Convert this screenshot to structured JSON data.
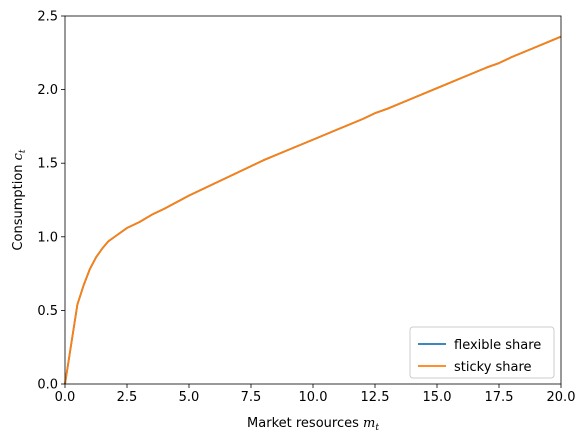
{
  "chart_data": {
    "type": "line",
    "title": "",
    "xlabel": {
      "text": "Market resources ",
      "math_base": "m",
      "math_sub": "t"
    },
    "ylabel": {
      "text": "Consumption ",
      "math_base": "c",
      "math_sub": "t"
    },
    "xlim": [
      0,
      20
    ],
    "ylim": [
      0,
      2.5
    ],
    "xticks": [
      0,
      2.5,
      5,
      7.5,
      10,
      12.5,
      15,
      17.5,
      20
    ],
    "xtick_labels": [
      "0.0",
      "2.5",
      "5.0",
      "7.5",
      "10.0",
      "12.5",
      "15.0",
      "17.5",
      "20.0"
    ],
    "yticks": [
      0,
      0.5,
      1,
      1.5,
      2,
      2.5
    ],
    "ytick_labels": [
      "0.0",
      "0.5",
      "1.0",
      "1.5",
      "2.0",
      "2.5"
    ],
    "grid": false,
    "legend_position": "lower-right",
    "series": [
      {
        "name": "flexible share",
        "color": "#1f77b4",
        "x": [
          0,
          0.25,
          0.5,
          0.75,
          1.0,
          1.25,
          1.5,
          1.75,
          2.0,
          2.5,
          3.0,
          3.5,
          4.0,
          5.0,
          6.0,
          7.0,
          7.5,
          8.0,
          9.0,
          10.0,
          11.0,
          12.0,
          12.5,
          13.0,
          14.0,
          15.0,
          16.0,
          17.0,
          17.5,
          18.0,
          19.0,
          20.0
        ],
        "y": [
          0,
          0.27,
          0.54,
          0.67,
          0.78,
          0.86,
          0.92,
          0.97,
          1.0,
          1.06,
          1.1,
          1.15,
          1.19,
          1.28,
          1.36,
          1.44,
          1.48,
          1.52,
          1.59,
          1.66,
          1.73,
          1.8,
          1.84,
          1.87,
          1.94,
          2.01,
          2.08,
          2.15,
          2.18,
          2.22,
          2.29,
          2.36
        ]
      },
      {
        "name": "sticky share",
        "color": "#ff7f0e",
        "x": [
          0,
          0.25,
          0.5,
          0.75,
          1.0,
          1.25,
          1.5,
          1.75,
          2.0,
          2.5,
          3.0,
          3.5,
          4.0,
          5.0,
          6.0,
          7.0,
          7.5,
          8.0,
          9.0,
          10.0,
          11.0,
          12.0,
          12.5,
          13.0,
          14.0,
          15.0,
          16.0,
          17.0,
          17.5,
          18.0,
          19.0,
          20.0
        ],
        "y": [
          0,
          0.27,
          0.54,
          0.67,
          0.78,
          0.86,
          0.92,
          0.97,
          1.0,
          1.06,
          1.1,
          1.15,
          1.19,
          1.28,
          1.36,
          1.44,
          1.48,
          1.52,
          1.59,
          1.66,
          1.73,
          1.8,
          1.84,
          1.87,
          1.94,
          2.01,
          2.08,
          2.15,
          2.18,
          2.22,
          2.29,
          2.36
        ]
      }
    ]
  }
}
